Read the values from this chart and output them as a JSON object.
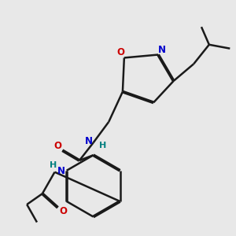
{
  "bg_color": "#e8e8e8",
  "bond_color": "#1a1a1a",
  "N_color": "#0000cc",
  "O_color": "#cc0000",
  "H_color": "#008080",
  "line_width": 1.8,
  "dbo": 0.025,
  "xlim": [
    0,
    10
  ],
  "ylim": [
    0,
    10
  ]
}
